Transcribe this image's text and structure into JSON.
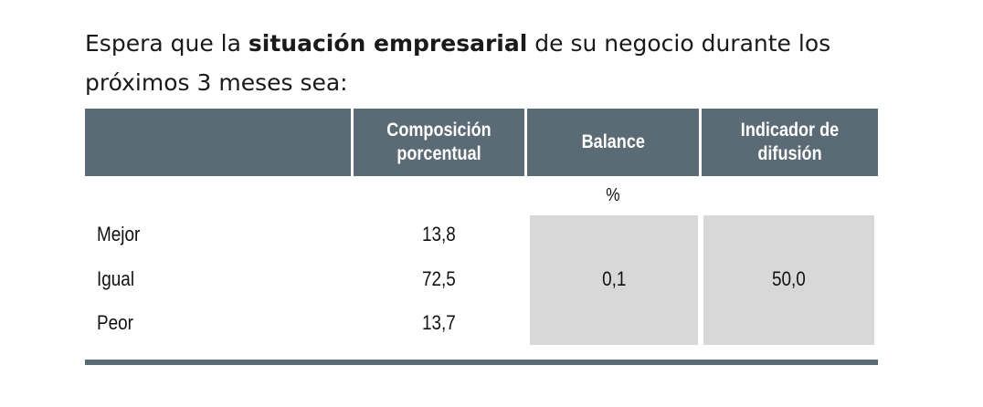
{
  "heading": {
    "prefix": "Espera que la ",
    "emphasis": "situación empresarial",
    "suffix": " de su negocio durante los próximos 3 meses sea:"
  },
  "table": {
    "columns": [
      "",
      "Composición porcentual",
      "Balance",
      "Indicador de difusión"
    ],
    "unit": "%",
    "rows": [
      {
        "label": "Mejor",
        "composicion": "13,8"
      },
      {
        "label": "Igual",
        "composicion": "72,5"
      },
      {
        "label": "Peor",
        "composicion": "13,7"
      }
    ],
    "balance": "0,1",
    "indicador_difusion": "50,0"
  },
  "colors": {
    "header_bg": "#5b6b75",
    "cell_shade": "#d8d8d8"
  }
}
